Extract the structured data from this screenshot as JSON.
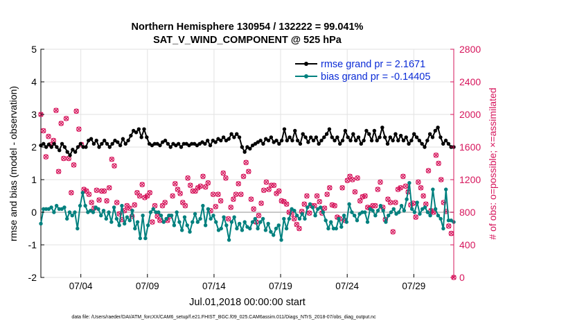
{
  "chart_data": {
    "type": "line",
    "title_line1": "Northern Hemisphere 130954 / 132222 = 99.041%",
    "title_line2": "SAT_V_WIND_COMPONENT @ 525 hPa",
    "xlabel": "Jul.01,2018 00:00:00 start",
    "ylabel_left": "rmse and bias (model - observation)",
    "ylabel_right": "# of obs: o=possible; ×=assimilated",
    "ylim_left": [
      -2,
      5
    ],
    "ylim_right": [
      0,
      2800
    ],
    "xlim": [
      1,
      32
    ],
    "y_ticks_left": [
      "-2",
      "-1",
      "0",
      "1",
      "2",
      "3",
      "4",
      "5"
    ],
    "y_ticks_right": [
      "0",
      "400",
      "800",
      "1200",
      "1600",
      "2000",
      "2400",
      "2800"
    ],
    "x_ticks": [
      {
        "day": 4,
        "label": "07/04"
      },
      {
        "day": 9,
        "label": "07/09"
      },
      {
        "day": 14,
        "label": "07/14"
      },
      {
        "day": 19,
        "label": "07/19"
      },
      {
        "day": 24,
        "label": "07/24"
      },
      {
        "day": 29,
        "label": "07/29"
      }
    ],
    "zero_line": 0,
    "footnote": "data file: /Users/raeder/DAI/ATM_forcXX/CAM6_setup/f.e21.FHIST_BGC.f09_025.CAM6assim.011/Diags_NTrS_2018-07/obs_diag_output.nc",
    "legend_position": "top-right",
    "series": [
      {
        "name": "rmse grand pr = 2.1671",
        "color": "#000000",
        "axis": "left",
        "values": [
          2.05,
          2.1,
          2.0,
          2.08,
          2.0,
          2.1,
          2.0,
          1.9,
          2.1,
          2.0,
          1.85,
          1.75,
          1.92,
          1.85,
          2.0,
          2.1,
          2.0,
          2.0,
          2.2,
          2.25,
          2.1,
          2.2,
          2.0,
          2.1,
          2.2,
          2.1,
          2.0,
          2.1,
          2.2,
          2.15,
          2.05,
          2.25,
          2.1,
          2.2,
          2.35,
          2.5,
          2.45,
          2.55,
          2.3,
          2.55,
          2.3,
          2.1,
          2.05,
          2.1,
          2.1,
          2.05,
          2.15,
          2.2,
          2.1,
          2.0,
          2.1,
          2.05,
          2.1,
          2.0,
          2.1,
          2.1,
          2.05,
          2.1,
          2.1,
          2.05,
          2.1,
          2.15,
          2.1,
          2.2,
          2.05,
          2.2,
          2.15,
          2.25,
          2.2,
          2.3,
          2.2,
          2.25,
          2.4,
          2.3,
          2.4,
          2.3,
          2.0,
          1.85,
          2.0,
          1.95,
          2.05,
          2.1,
          2.15,
          2.2,
          2.1,
          2.25,
          2.2,
          2.3,
          2.15,
          2.2,
          2.1,
          2.2,
          2.55,
          2.2,
          2.3,
          2.2,
          2.5,
          2.2,
          2.1,
          2.4,
          2.3,
          2.15,
          2.3,
          2.2,
          2.3,
          2.1,
          2.2,
          2.3,
          2.4,
          2.55,
          2.3,
          2.2,
          2.3,
          2.1,
          2.2,
          2.5,
          2.3,
          2.2,
          2.4,
          2.2,
          2.3,
          2.1,
          2.2,
          2.5,
          2.4,
          2.2,
          2.5,
          2.2,
          2.3,
          2.6,
          2.3,
          2.1,
          2.3,
          2.2,
          2.4,
          2.2,
          2.35,
          2.2,
          2.3,
          2.1,
          2.2,
          2.4,
          2.3,
          2.2,
          2.1,
          2.0,
          2.2,
          2.4,
          2.3,
          2.5,
          2.6,
          2.3,
          2.1,
          2.2,
          2.1,
          2.0,
          2.0
        ]
      },
      {
        "name": "bias grand pr = -0.14405",
        "color": "#00807e",
        "axis": "left",
        "values": [
          -0.35,
          0.1,
          0.1,
          0.1,
          0.15,
          0.0,
          0.2,
          0.1,
          0.1,
          0.15,
          -0.2,
          0.0,
          -0.1,
          0.0,
          -0.5,
          0.2,
          0.6,
          0.2,
          0.0,
          0.05,
          0.0,
          0.15,
          0.1,
          -0.1,
          0.05,
          -0.2,
          0.0,
          -0.3,
          0.15,
          -0.2,
          -0.4,
          0.2,
          -0.35,
          -0.15,
          -0.25,
          0.05,
          -0.5,
          -0.3,
          -0.8,
          -0.1,
          -0.8,
          -0.4,
          0.0,
          0.1,
          0.0,
          0.0,
          -0.1,
          -0.3,
          -0.2,
          -0.1,
          -0.1,
          -0.4,
          0.0,
          -0.3,
          -0.55,
          -0.15,
          -0.4,
          -0.6,
          -0.3,
          -0.05,
          -0.3,
          -0.2,
          0.2,
          -0.4,
          0.1,
          -0.2,
          -0.1,
          -0.3,
          -0.55,
          -0.5,
          -0.15,
          -0.4,
          -0.85,
          -0.3,
          -0.15,
          -0.5,
          -0.35,
          -0.55,
          -0.3,
          -0.45,
          -0.5,
          -0.3,
          -0.2,
          -0.5,
          -0.3,
          -0.2,
          -0.55,
          -0.35,
          -0.6,
          -0.7,
          -0.5,
          -0.4,
          -0.85,
          -0.2,
          -0.5,
          -0.2,
          0.1,
          0.05,
          -0.1,
          -0.2,
          -0.05,
          -0.2,
          0.15,
          0.25,
          0.15,
          -0.1,
          0.1,
          0.15,
          0.0,
          -0.25,
          -0.5,
          -0.3,
          -0.5,
          -0.5,
          -0.2,
          -0.45,
          -0.1,
          -0.3,
          0.25,
          0.0,
          -0.1,
          -0.25,
          -0.05,
          0.0,
          0.0,
          -0.3,
          0.1,
          0.05,
          -0.1,
          0.05,
          0.2,
          0.05,
          -0.3,
          -0.1,
          0.0,
          0.1,
          -0.05,
          0.0,
          0.2,
          0.05,
          0.4,
          0.9,
          0.1,
          0.0,
          0.3,
          -0.05,
          0.1,
          0.15,
          0.0,
          -0.1,
          0.7,
          0.1,
          -0.1,
          -0.2,
          -0.5,
          0.7,
          -0.25,
          -0.25,
          -0.3
        ]
      },
      {
        "name": "# of obs possible",
        "color": "#d6145b",
        "axis": "right",
        "marker": "o",
        "values": [
          2000,
          1800,
          1480,
          1730,
          1630,
          1680,
          2050,
          1300,
          1890,
          1460,
          1950,
          1460,
          1040,
          1380,
          2040,
          1820,
          1630,
          1080,
          1060,
          1020,
          920,
          850,
          1070,
          950,
          1060,
          1060,
          940,
          1100,
          1450,
          1370,
          920,
          780,
          710,
          820,
          880,
          850,
          750,
          890,
          1040,
          1000,
          1140,
          980,
          1000,
          1040,
          680,
          880,
          750,
          700,
          880,
          920,
          700,
          750,
          1000,
          1150,
          1080,
          1030,
          920,
          880,
          1220,
          1130,
          1060,
          1060,
          1100,
          1120,
          1240,
          1110,
          1160,
          820,
          1020,
          870,
          1020,
          940,
          1280,
          1220,
          720,
          860,
          960,
          1020,
          1150,
          1020,
          1240,
          1410,
          1300,
          960,
          840,
          680,
          760,
          910,
          1070,
          1170,
          1080,
          1130,
          1130,
          1030,
          1060,
          940,
          930,
          900,
          800,
          780,
          720,
          650,
          600,
          810,
          900,
          1000,
          790,
          880,
          880,
          1000,
          930,
          790,
          850,
          1020,
          1100,
          890,
          880,
          740,
          720,
          1100,
          700,
          1190,
          1240,
          1200,
          1050,
          1220,
          940,
          990,
          1000,
          860,
          850,
          880,
          880,
          1080,
          1170,
          860,
          710,
          960,
          920,
          560,
          920,
          1080,
          1100,
          1240,
          1120,
          1050,
          890,
          910,
          740,
          1170,
          1100,
          1000,
          900,
          1310,
          820,
          800,
          1500,
          1400,
          1200,
          920,
          810,
          630,
          540,
          0
        ]
      }
    ]
  }
}
